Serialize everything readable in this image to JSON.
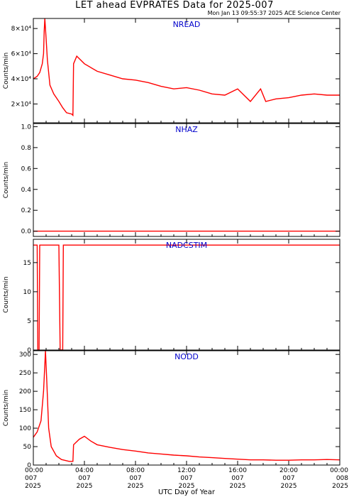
{
  "header": {
    "title": "LET ahead EVPRATES Data for 2025-007",
    "subtitle": "Mon Jan 13 09:55:37 2025 ACE Science Center"
  },
  "colors": {
    "data": "#ff0000",
    "panel_name": "#0000cc",
    "axes": "#000000"
  },
  "chart_data": {
    "type": "line",
    "xlabel": "UTC Day of Year",
    "xlim": [
      0,
      24
    ],
    "x_ticks": [
      {
        "time": "00:00",
        "doy": "007",
        "year": "2025"
      },
      {
        "time": "04:00",
        "doy": "007",
        "year": "2025"
      },
      {
        "time": "08:00",
        "doy": "007",
        "year": "2025"
      },
      {
        "time": "12:00",
        "doy": "007",
        "year": "2025"
      },
      {
        "time": "16:00",
        "doy": "007",
        "year": "2025"
      },
      {
        "time": "20:00",
        "doy": "007",
        "year": "2025"
      },
      {
        "time": "00:00",
        "doy": "008",
        "year": "2025"
      }
    ],
    "panels": [
      {
        "name": "NREAD",
        "ylabel": "Counts/min",
        "ylim": [
          5000,
          88000
        ],
        "yticks": [
          20000,
          40000,
          60000,
          80000
        ],
        "yticklabels": [
          "2×10⁴",
          "4×10⁴",
          "6×10⁴",
          "8×10⁴"
        ],
        "points": [
          [
            0,
            40000
          ],
          [
            0.3,
            42000
          ],
          [
            0.5,
            45000
          ],
          [
            0.7,
            52000
          ],
          [
            0.8,
            60000
          ],
          [
            0.85,
            78000
          ],
          [
            0.9,
            88000
          ],
          [
            1.0,
            72000
          ],
          [
            1.1,
            55000
          ],
          [
            1.3,
            35000
          ],
          [
            1.6,
            28000
          ],
          [
            2.0,
            22000
          ],
          [
            2.3,
            17000
          ],
          [
            2.6,
            13000
          ],
          [
            3.0,
            12000
          ],
          [
            3.1,
            11000
          ],
          [
            3.15,
            52000
          ],
          [
            3.4,
            58000
          ],
          [
            4.0,
            52000
          ],
          [
            5.0,
            46000
          ],
          [
            6.0,
            43000
          ],
          [
            7.0,
            40000
          ],
          [
            8.0,
            39000
          ],
          [
            9.0,
            37000
          ],
          [
            10.0,
            34000
          ],
          [
            11.0,
            32000
          ],
          [
            12.0,
            33000
          ],
          [
            13.0,
            31000
          ],
          [
            14.0,
            28000
          ],
          [
            15.0,
            27000
          ],
          [
            16.0,
            32000
          ],
          [
            17.0,
            22000
          ],
          [
            17.8,
            32000
          ],
          [
            18.2,
            22000
          ],
          [
            19.0,
            24000
          ],
          [
            20.0,
            25000
          ],
          [
            21.0,
            27000
          ],
          [
            22.0,
            28000
          ],
          [
            23.0,
            27000
          ],
          [
            24.0,
            27000
          ]
        ]
      },
      {
        "name": "NHAZ",
        "ylabel": "Counts/min",
        "ylim": [
          -0.05,
          1.03
        ],
        "yticks": [
          0.0,
          0.2,
          0.4,
          0.6,
          0.8,
          1.0
        ],
        "yticklabels": [
          "0.0",
          "0.2",
          "0.4",
          "0.6",
          "0.8",
          "1.0"
        ],
        "points": [
          [
            0,
            0
          ],
          [
            24,
            0
          ]
        ]
      },
      {
        "name": "NADCSTIM",
        "ylabel": "Counts/min",
        "ylim": [
          0,
          19
        ],
        "yticks": [
          0,
          5,
          10,
          15
        ],
        "yticklabels": [
          "0",
          "5",
          "10",
          "15"
        ],
        "points": [
          [
            0,
            18
          ],
          [
            0.3,
            18
          ],
          [
            0.35,
            0
          ],
          [
            0.45,
            0
          ],
          [
            0.5,
            18
          ],
          [
            2.0,
            18
          ],
          [
            2.1,
            0
          ],
          [
            2.3,
            0
          ],
          [
            2.35,
            18
          ],
          [
            24,
            18
          ]
        ]
      },
      {
        "name": "NODD",
        "ylabel": "Counts/min",
        "ylim": [
          0,
          310
        ],
        "yticks": [
          0,
          50,
          100,
          150,
          200,
          250,
          300
        ],
        "yticklabels": [
          "0",
          "50",
          "100",
          "150",
          "200",
          "250",
          "300"
        ],
        "points": [
          [
            0,
            75
          ],
          [
            0.3,
            90
          ],
          [
            0.6,
            120
          ],
          [
            0.8,
            200
          ],
          [
            0.95,
            310
          ],
          [
            1.05,
            230
          ],
          [
            1.2,
            100
          ],
          [
            1.4,
            50
          ],
          [
            1.8,
            25
          ],
          [
            2.2,
            15
          ],
          [
            2.8,
            10
          ],
          [
            3.1,
            10
          ],
          [
            3.15,
            55
          ],
          [
            3.6,
            70
          ],
          [
            4.0,
            78
          ],
          [
            4.5,
            65
          ],
          [
            5.0,
            55
          ],
          [
            6.0,
            48
          ],
          [
            7.0,
            42
          ],
          [
            8.0,
            38
          ],
          [
            9.0,
            33
          ],
          [
            10.0,
            30
          ],
          [
            11.0,
            27
          ],
          [
            12.0,
            25
          ],
          [
            13.0,
            22
          ],
          [
            14.0,
            20
          ],
          [
            15.0,
            18
          ],
          [
            16.0,
            16
          ],
          [
            17.0,
            14
          ],
          [
            18.0,
            14
          ],
          [
            19.0,
            13
          ],
          [
            20.0,
            13
          ],
          [
            21.0,
            14
          ],
          [
            22.0,
            14
          ],
          [
            23.0,
            15
          ],
          [
            24.0,
            14
          ]
        ]
      }
    ]
  }
}
